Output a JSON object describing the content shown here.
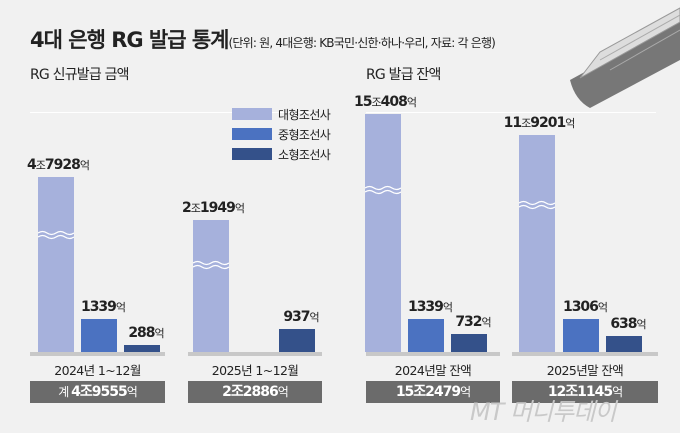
{
  "title": "4대 은행 RG 발급 통계",
  "subtitle": "(단위: 원, 4대은행: KB국민·신한·하나·우리, 자료: 각 은행)",
  "colors": {
    "large": "#a6b1dc",
    "medium": "#4b72c1",
    "small": "#34518a",
    "total_box": "#6b6b6b"
  },
  "chart_data": [
    {
      "type": "bar",
      "title": "RG 신규발급 금액",
      "unit": "억",
      "legend": [
        "대형조선사",
        "중형조선사",
        "소형조선사"
      ],
      "categories": [
        "2024년 1~12월",
        "2025년 1~12월"
      ],
      "series": [
        {
          "name": "대형조선사",
          "values": [
            47928,
            21949
          ],
          "labels": [
            "4조7928",
            "2조1949"
          ]
        },
        {
          "name": "중형조선사",
          "values": [
            1339,
            null
          ],
          "labels": [
            "1339",
            ""
          ]
        },
        {
          "name": "소형조선사",
          "values": [
            288,
            937
          ],
          "labels": [
            "288",
            "937"
          ]
        }
      ],
      "totals": [
        {
          "prefix": "계 ",
          "value": "4조9555"
        },
        {
          "prefix": "",
          "value": "2조2886"
        }
      ],
      "broken_axis": true
    },
    {
      "type": "bar",
      "title": "RG 발급 잔액",
      "unit": "억",
      "categories": [
        "2024년말 잔액",
        "2025년말 잔액"
      ],
      "series": [
        {
          "name": "대형조선사",
          "values": [
            150408,
            119201
          ],
          "labels": [
            "15조408",
            "11조9201"
          ]
        },
        {
          "name": "중형조선사",
          "values": [
            1339,
            1306
          ],
          "labels": [
            "1339",
            "1306"
          ]
        },
        {
          "name": "소형조선사",
          "values": [
            732,
            638
          ],
          "labels": [
            "732",
            "638"
          ]
        }
      ],
      "totals": [
        {
          "prefix": "",
          "value": "15조2479"
        },
        {
          "prefix": "",
          "value": "12조1145"
        }
      ],
      "broken_axis": true
    }
  ],
  "unit_label": "억",
  "watermark": "MT 머니투데이"
}
